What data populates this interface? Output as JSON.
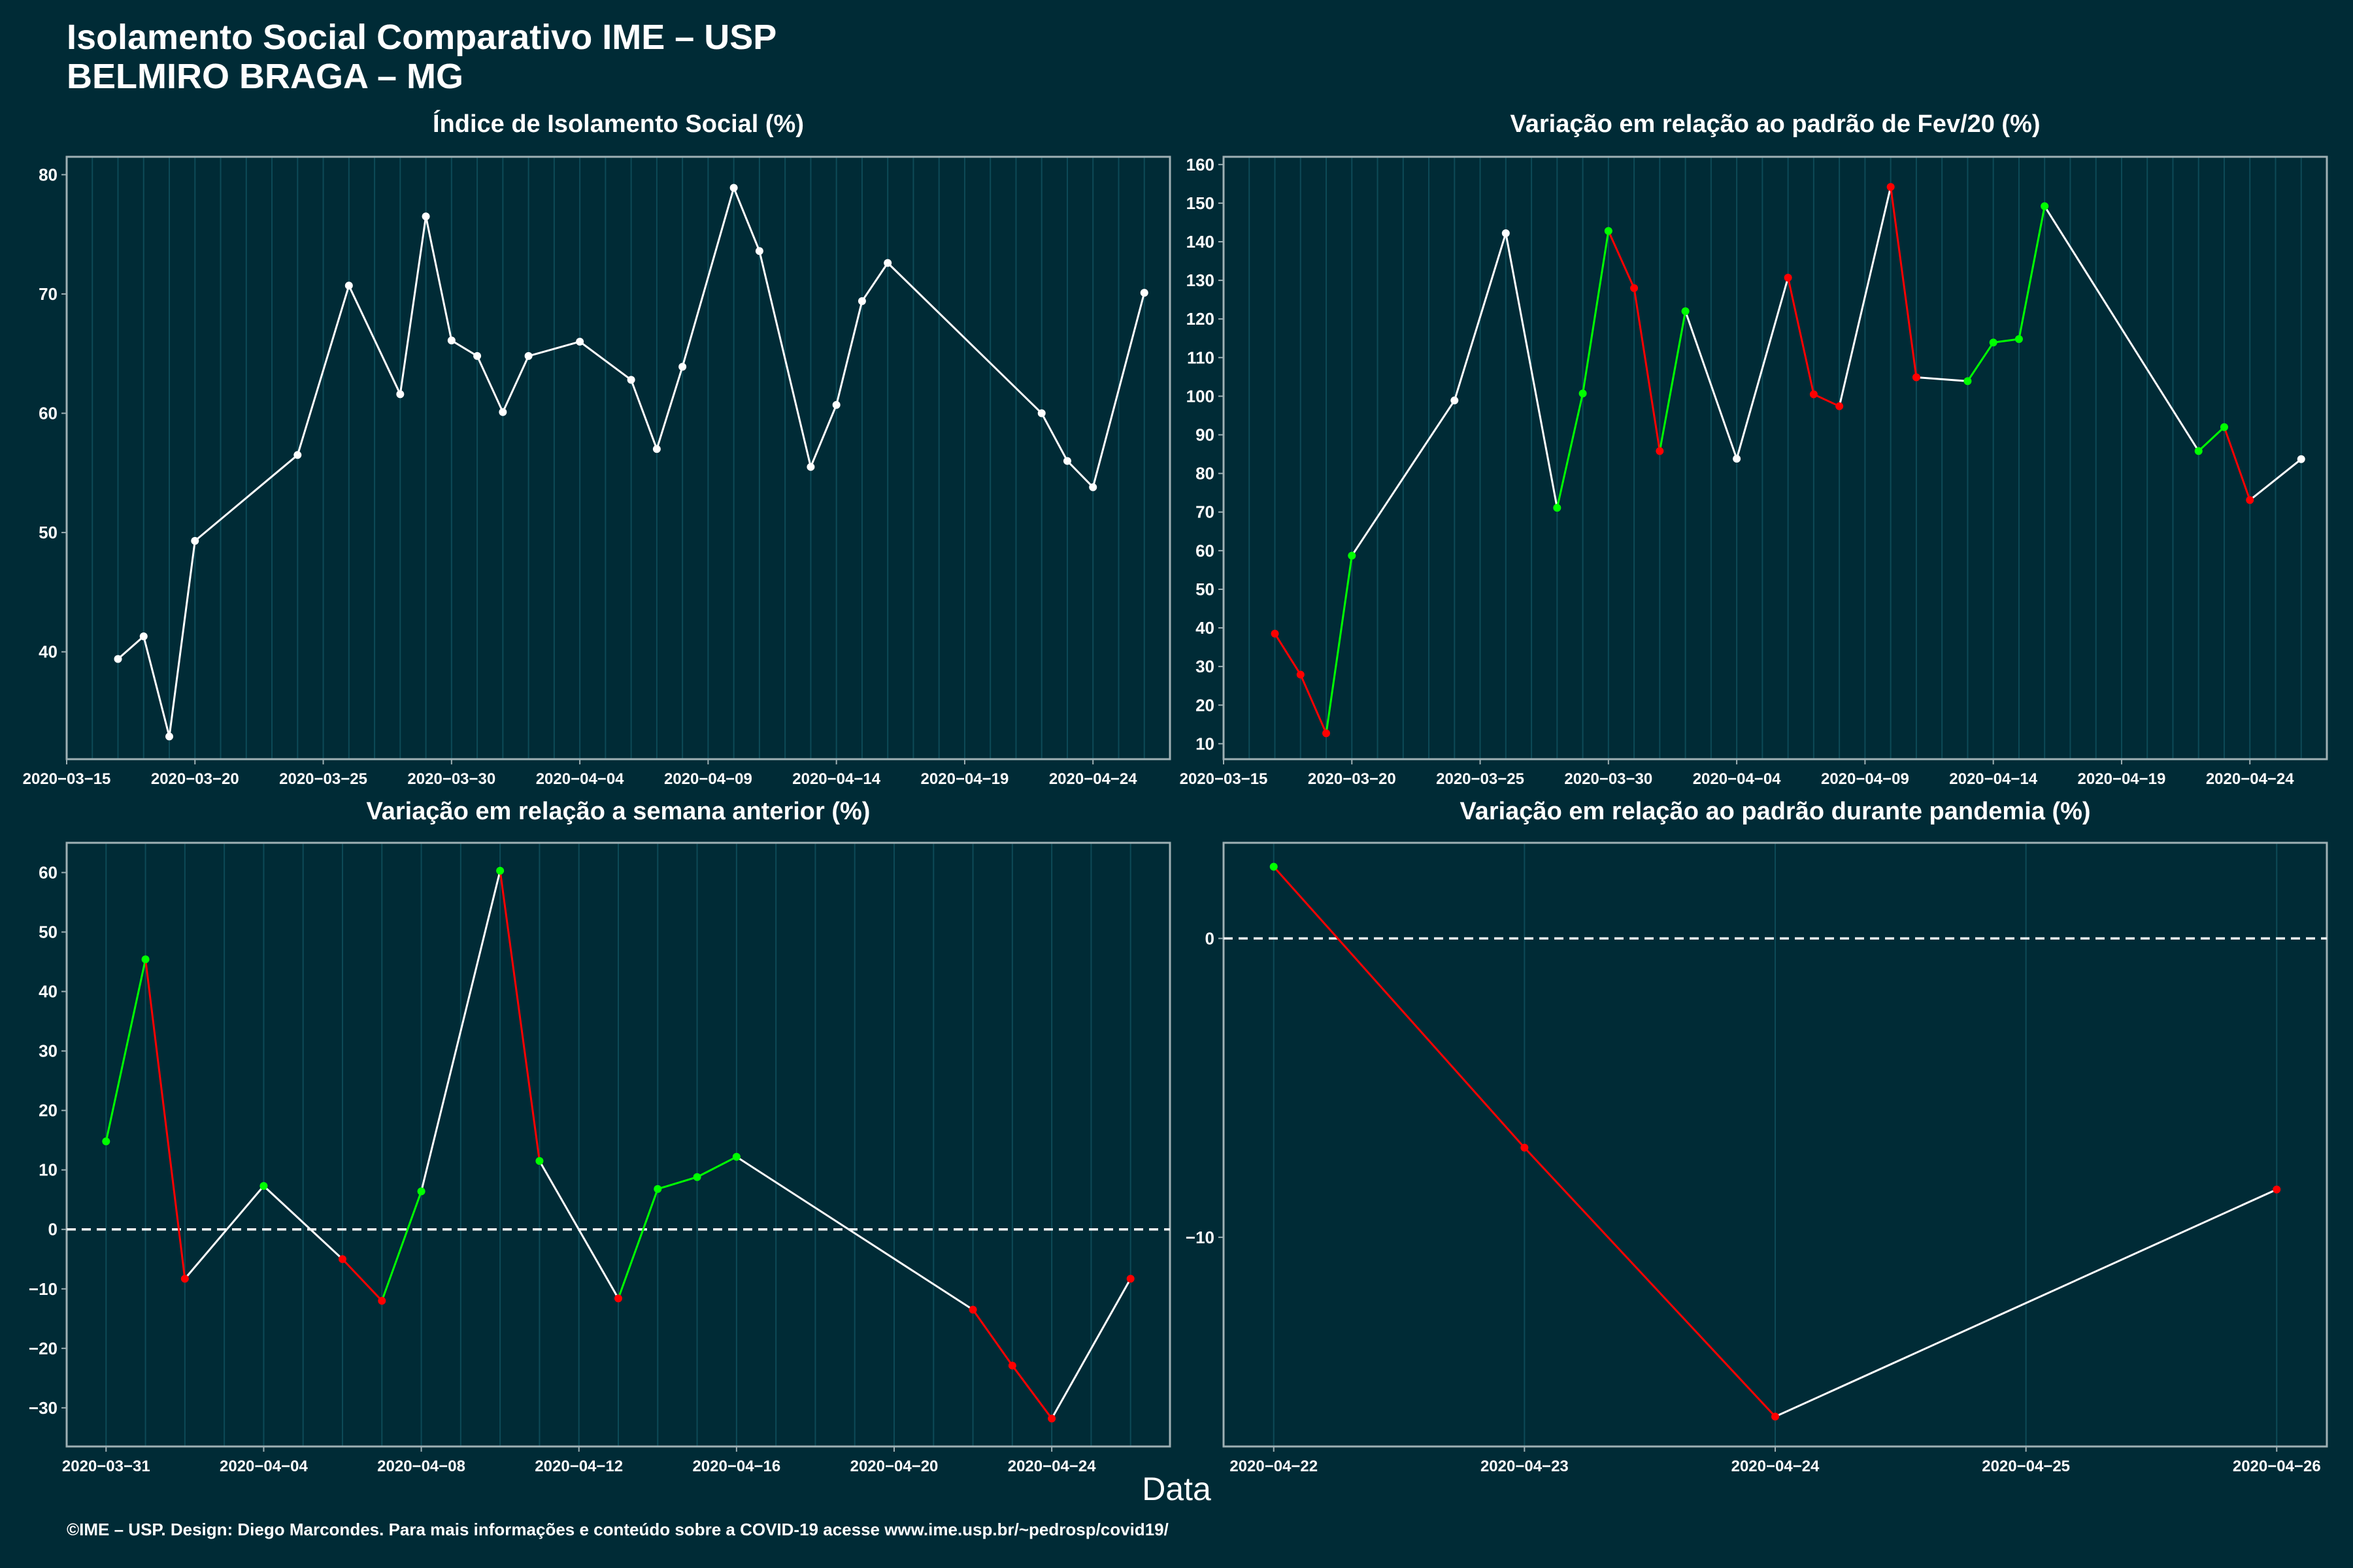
{
  "title_line1": "Isolamento Social Comparativo IME – USP",
  "title_line2": "BELMIRO BRAGA – MG",
  "xlabel": "Data",
  "footer": "©IME – USP. Design: Diego Marcondes. Para mais informações e conteúdo sobre a COVID-19 acesse www.ime.usp.br/~pedrosp/covid19/",
  "colors": {
    "background": "#002b36",
    "line_default": "#ffffff",
    "increase": "#00ff00",
    "decrease": "#ff0000",
    "grid": "#0d4a57"
  },
  "chart_data": [
    {
      "type": "line",
      "title": "Índice de Isolamento Social (%)",
      "xlim": [
        "2020-03-15",
        "2020-04-27"
      ],
      "ylim": [
        31,
        81.5
      ],
      "xticks": [
        "2020-03-15",
        "2020-03-20",
        "2020-03-25",
        "2020-03-30",
        "2020-04-04",
        "2020-04-09",
        "2020-04-14",
        "2020-04-19",
        "2020-04-24"
      ],
      "yticks": [
        40,
        50,
        60,
        70,
        80
      ],
      "points": [
        {
          "x": "2020-03-17",
          "y": 39.4
        },
        {
          "x": "2020-03-18",
          "y": 41.3
        },
        {
          "x": "2020-03-19",
          "y": 32.9
        },
        {
          "x": "2020-03-20",
          "y": 49.3
        },
        {
          "x": "2020-03-24",
          "y": 56.5
        },
        {
          "x": "2020-03-26",
          "y": 70.7
        },
        {
          "x": "2020-03-28",
          "y": 61.6
        },
        {
          "x": "2020-03-29",
          "y": 76.5
        },
        {
          "x": "2020-03-30",
          "y": 66.1
        },
        {
          "x": "2020-03-31",
          "y": 64.8
        },
        {
          "x": "2020-04-01",
          "y": 60.1
        },
        {
          "x": "2020-04-02",
          "y": 64.8
        },
        {
          "x": "2020-04-04",
          "y": 66.0
        },
        {
          "x": "2020-04-06",
          "y": 62.8
        },
        {
          "x": "2020-04-07",
          "y": 57.0
        },
        {
          "x": "2020-04-08",
          "y": 63.9
        },
        {
          "x": "2020-04-10",
          "y": 78.9
        },
        {
          "x": "2020-04-11",
          "y": 73.6
        },
        {
          "x": "2020-04-13",
          "y": 55.5
        },
        {
          "x": "2020-04-14",
          "y": 60.7
        },
        {
          "x": "2020-04-15",
          "y": 69.4
        },
        {
          "x": "2020-04-16",
          "y": 72.6
        },
        {
          "x": "2020-04-22",
          "y": 60.0
        },
        {
          "x": "2020-04-23",
          "y": 56.0
        },
        {
          "x": "2020-04-24",
          "y": 53.8
        },
        {
          "x": "2020-04-26",
          "y": 70.1
        }
      ]
    },
    {
      "type": "line",
      "title": "Variação em relação ao padrão de Fev/20 (%)",
      "xlim": [
        "2020-03-15",
        "2020-04-27"
      ],
      "ylim": [
        6,
        162
      ],
      "xticks": [
        "2020-03-15",
        "2020-03-20",
        "2020-03-25",
        "2020-03-30",
        "2020-04-04",
        "2020-04-09",
        "2020-04-14",
        "2020-04-19",
        "2020-04-24"
      ],
      "yticks": [
        10,
        20,
        30,
        40,
        50,
        60,
        70,
        80,
        90,
        100,
        110,
        120,
        130,
        140,
        150,
        160
      ],
      "points": [
        {
          "x": "2020-03-17",
          "y": 38.5
        },
        {
          "x": "2020-03-18",
          "y": 27.9
        },
        {
          "x": "2020-03-19",
          "y": 12.7
        },
        {
          "x": "2020-03-20",
          "y": 58.7
        },
        {
          "x": "2020-03-24",
          "y": 98.9
        },
        {
          "x": "2020-03-26",
          "y": 142.2
        },
        {
          "x": "2020-03-28",
          "y": 71.1
        },
        {
          "x": "2020-03-29",
          "y": 100.7
        },
        {
          "x": "2020-03-30",
          "y": 142.8
        },
        {
          "x": "2020-03-31",
          "y": 128.0
        },
        {
          "x": "2020-04-01",
          "y": 85.8
        },
        {
          "x": "2020-04-02",
          "y": 122.0
        },
        {
          "x": "2020-04-04",
          "y": 83.8
        },
        {
          "x": "2020-04-06",
          "y": 130.7
        },
        {
          "x": "2020-04-07",
          "y": 100.5
        },
        {
          "x": "2020-04-08",
          "y": 97.4
        },
        {
          "x": "2020-04-10",
          "y": 154.2
        },
        {
          "x": "2020-04-11",
          "y": 104.9
        },
        {
          "x": "2020-04-13",
          "y": 103.9
        },
        {
          "x": "2020-04-14",
          "y": 113.9
        },
        {
          "x": "2020-04-15",
          "y": 114.8
        },
        {
          "x": "2020-04-16",
          "y": 149.2
        },
        {
          "x": "2020-04-22",
          "y": 85.8
        },
        {
          "x": "2020-04-23",
          "y": 92.0
        },
        {
          "x": "2020-04-24",
          "y": 73.1
        },
        {
          "x": "2020-04-26",
          "y": 83.7
        }
      ]
    },
    {
      "type": "line",
      "title": "Variação em relação a semana anterior (%)",
      "xlim": [
        "2020-03-30",
        "2020-04-27"
      ],
      "ylim": [
        -36.5,
        65
      ],
      "xticks": [
        "2020-03-31",
        "2020-04-04",
        "2020-04-08",
        "2020-04-12",
        "2020-04-16",
        "2020-04-20",
        "2020-04-24"
      ],
      "yticks": [
        -30,
        -20,
        -10,
        0,
        10,
        20,
        30,
        40,
        50,
        60
      ],
      "reference_line": 0,
      "points": [
        {
          "x": "2020-03-31",
          "y": 14.8
        },
        {
          "x": "2020-04-01",
          "y": 45.4
        },
        {
          "x": "2020-04-02",
          "y": -8.3
        },
        {
          "x": "2020-04-04",
          "y": 7.3
        },
        {
          "x": "2020-04-06",
          "y": -5.0
        },
        {
          "x": "2020-04-07",
          "y": -12.0
        },
        {
          "x": "2020-04-08",
          "y": 6.4
        },
        {
          "x": "2020-04-10",
          "y": 60.3
        },
        {
          "x": "2020-04-11",
          "y": 11.5
        },
        {
          "x": "2020-04-13",
          "y": -11.6
        },
        {
          "x": "2020-04-14",
          "y": 6.8
        },
        {
          "x": "2020-04-15",
          "y": 8.8
        },
        {
          "x": "2020-04-16",
          "y": 12.2
        },
        {
          "x": "2020-04-22",
          "y": -13.5
        },
        {
          "x": "2020-04-23",
          "y": -22.9
        },
        {
          "x": "2020-04-24",
          "y": -31.8
        },
        {
          "x": "2020-04-26",
          "y": -8.3
        }
      ]
    },
    {
      "type": "line",
      "title": "Variação em relação ao padrão durante pandemia (%)",
      "xlim": [
        "2020-04-21.8",
        "2020-04-26.2"
      ],
      "ylim": [
        -17,
        3.2
      ],
      "xticks": [
        "2020-04-22",
        "2020-04-23",
        "2020-04-24",
        "2020-04-25",
        "2020-04-26"
      ],
      "yticks": [
        -10,
        0
      ],
      "reference_line": 0,
      "points": [
        {
          "x": "2020-04-22",
          "y": 2.4
        },
        {
          "x": "2020-04-23",
          "y": -7.0
        },
        {
          "x": "2020-04-24",
          "y": -16.0
        },
        {
          "x": "2020-04-26",
          "y": -8.4
        }
      ]
    }
  ]
}
